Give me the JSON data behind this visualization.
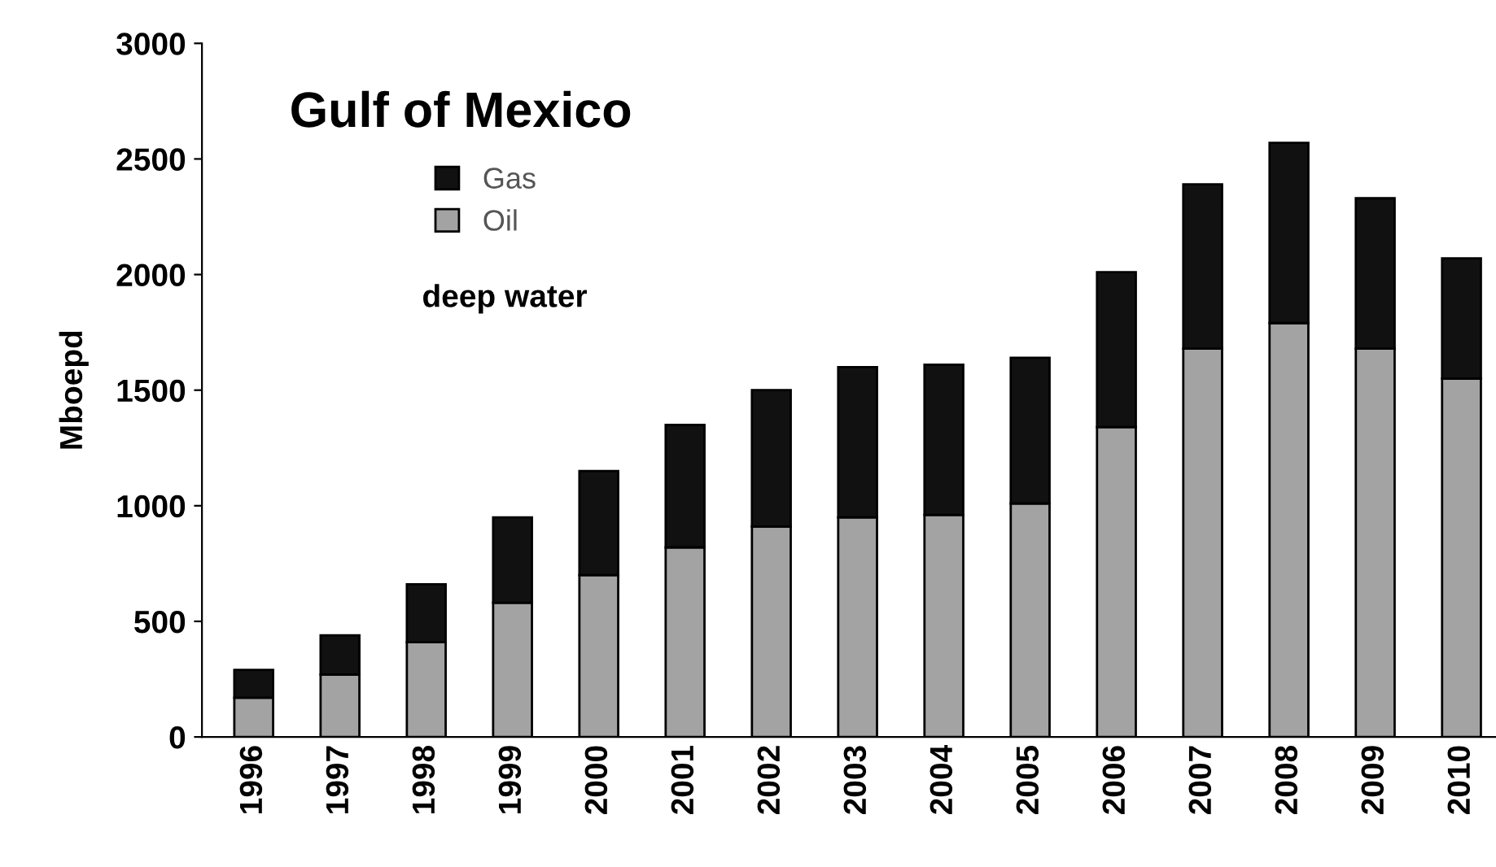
{
  "chart_data": {
    "type": "bar",
    "stacked": true,
    "title": "Gulf of Mexico",
    "ylabel": "Mboepd",
    "annotations": [
      "deep water"
    ],
    "categories": [
      "1996",
      "1997",
      "1998",
      "1999",
      "2000",
      "2001",
      "2002",
      "2003",
      "2004",
      "2005",
      "2006",
      "2007",
      "2008",
      "2009",
      "2010"
    ],
    "series": [
      {
        "name": "Oil",
        "color": "#a3a3a3",
        "values": [
          170,
          270,
          410,
          580,
          700,
          820,
          910,
          950,
          960,
          1010,
          1340,
          1680,
          1790,
          1680,
          1550
        ]
      },
      {
        "name": "Gas",
        "color": "#111111",
        "values": [
          120,
          170,
          250,
          370,
          450,
          530,
          590,
          650,
          650,
          630,
          670,
          710,
          780,
          650,
          520
        ]
      }
    ],
    "ylim": [
      0,
      3000
    ],
    "yticks": [
      0,
      500,
      1000,
      1500,
      2000,
      2500,
      3000
    ],
    "grid": false,
    "legend": "top left"
  }
}
